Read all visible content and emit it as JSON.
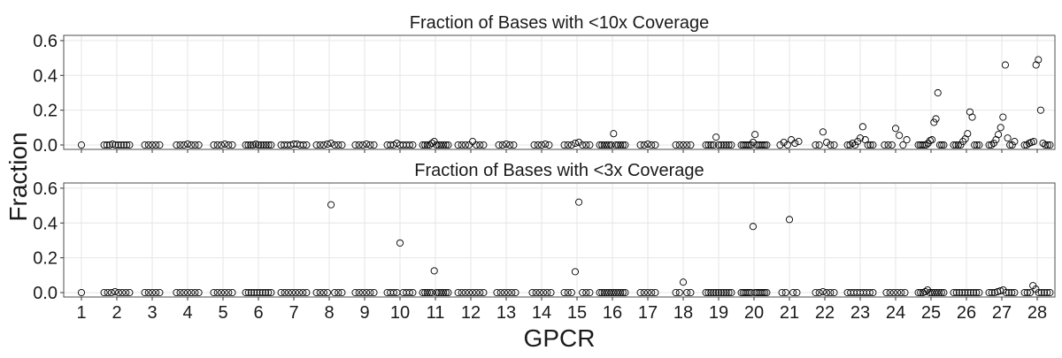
{
  "chart_data": {
    "type": "scatter",
    "shared_ylabel": "Fraction",
    "shared_xlabel": "GPCR",
    "categories": [
      "1",
      "2",
      "3",
      "4",
      "5",
      "6",
      "7",
      "8",
      "9",
      "10",
      "11",
      "12",
      "13",
      "14",
      "15",
      "16",
      "17",
      "18",
      "19",
      "20",
      "21",
      "22",
      "23",
      "24",
      "25",
      "26",
      "27",
      "28"
    ],
    "ylim": [
      0,
      0.62
    ],
    "yticks": [
      0.0,
      0.2,
      0.4,
      0.6
    ],
    "ytick_labels": [
      "0.0",
      "0.2",
      "0.4",
      "0.6"
    ],
    "grid": true,
    "panels": [
      {
        "title": "Fraction of Bases with <10x Coverage",
        "points_by_category": [
          [
            0.0
          ],
          [
            0.0,
            0.0,
            0.0,
            0.005,
            0.0,
            0.0,
            0.0,
            0.0,
            0.0,
            0.0
          ],
          [
            0.0,
            0.0,
            0.0,
            0.0,
            0.0
          ],
          [
            0.0,
            0.0,
            0.0,
            0.005,
            0.0,
            0.0,
            0.0
          ],
          [
            0.0,
            0.0,
            0.0,
            0.005,
            0.0,
            0.0
          ],
          [
            0.0,
            0.0,
            0.0,
            0.0,
            0.005,
            0.0,
            0.0,
            0.0,
            0.0,
            0.0,
            0.0
          ],
          [
            0.0,
            0.0,
            0.0,
            0.0,
            0.005,
            0.005,
            0.0,
            0.0,
            0.0
          ],
          [
            0.0,
            0.0,
            0.0,
            0.005,
            0.01,
            0.0,
            0.0,
            0.0
          ],
          [
            0.0,
            0.0,
            0.0,
            0.005,
            0.0,
            0.0
          ],
          [
            0.0,
            0.0,
            0.0,
            0.01,
            0.0,
            0.0,
            0.0,
            0.0,
            0.0
          ],
          [
            0.0,
            0.0,
            0.0,
            0.0,
            0.01,
            0.02,
            0.0,
            0.0,
            0.0,
            0.0,
            0.0,
            0.0
          ],
          [
            0.0,
            0.0,
            0.0,
            0.0,
            0.02,
            0.0,
            0.0,
            0.0
          ],
          [
            0.0,
            0.0,
            0.005,
            0.0,
            0.0
          ],
          [
            0.0,
            0.0,
            0.0,
            0.005,
            0.0
          ],
          [
            0.0,
            0.0,
            0.0,
            0.01,
            0.015,
            0.0,
            0.0,
            0.0
          ],
          [
            0.0,
            0.0,
            0.0,
            0.0,
            0.0,
            0.0,
            0.065,
            0.0,
            0.0,
            0.0,
            0.0,
            0.0
          ],
          [
            0.0,
            0.0,
            0.005,
            0.0,
            0.0
          ],
          [
            0.0,
            0.0,
            0.0,
            0.0,
            0.0
          ],
          [
            0.0,
            0.0,
            0.0,
            0.0,
            0.045,
            0.0,
            0.0,
            0.0,
            0.0,
            0.0,
            0.0
          ],
          [
            0.0,
            0.0,
            0.0,
            0.0,
            0.0,
            0.0,
            0.015,
            0.06,
            0.0,
            0.0,
            0.0,
            0.0,
            0.0,
            0.0
          ],
          [
            0.0,
            0.015,
            0.0,
            0.03,
            0.01,
            0.02
          ],
          [
            0.0,
            0.0,
            0.075,
            0.015,
            0.0,
            0.0
          ],
          [
            0.0,
            0.0,
            0.01,
            0.0,
            0.02,
            0.04,
            0.105,
            0.03,
            0.0,
            0.0,
            0.0
          ],
          [
            0.0,
            0.0,
            0.0,
            0.095,
            0.055,
            0.0,
            0.03
          ],
          [
            0.0,
            0.0,
            0.0,
            0.0,
            0.0,
            0.01,
            0.025,
            0.03,
            0.13,
            0.15,
            0.3,
            0.0,
            0.0,
            0.0
          ],
          [
            0.0,
            0.0,
            0.0,
            0.0,
            0.02,
            0.035,
            0.065,
            0.19,
            0.16,
            0.0,
            0.0,
            0.0
          ],
          [
            0.0,
            0.0,
            0.01,
            0.03,
            0.06,
            0.1,
            0.16,
            0.46,
            0.04,
            0.0,
            0.0,
            0.02
          ],
          [
            0.0,
            0.0,
            0.01,
            0.015,
            0.02,
            0.46,
            0.49,
            0.2,
            0.01,
            0.0,
            0.0,
            0.0
          ]
        ]
      },
      {
        "title": "Fraction of Bases with <3x Coverage",
        "points_by_category": [
          [
            0.0
          ],
          [
            0.0,
            0.0,
            0.0,
            0.005,
            0.0,
            0.0,
            0.0,
            0.0
          ],
          [
            0.0,
            0.0,
            0.0,
            0.0,
            0.0
          ],
          [
            0.0,
            0.0,
            0.0,
            0.0,
            0.0,
            0.0,
            0.0
          ],
          [
            0.0,
            0.0,
            0.0,
            0.0,
            0.0,
            0.0
          ],
          [
            0.0,
            0.0,
            0.0,
            0.0,
            0.0,
            0.0,
            0.0,
            0.0,
            0.0,
            0.0
          ],
          [
            0.0,
            0.0,
            0.0,
            0.0,
            0.0,
            0.0,
            0.0,
            0.0
          ],
          [
            0.0,
            0.0,
            0.0,
            0.0,
            0.505,
            0.0,
            0.0,
            0.0
          ],
          [
            0.0,
            0.0,
            0.0,
            0.0,
            0.0,
            0.0
          ],
          [
            0.0,
            0.0,
            0.0,
            0.0,
            0.285,
            0.0,
            0.0,
            0.0,
            0.0
          ],
          [
            0.0,
            0.0,
            0.0,
            0.0,
            0.0,
            0.125,
            0.0,
            0.0,
            0.0,
            0.0,
            0.0,
            0.0
          ],
          [
            0.0,
            0.0,
            0.0,
            0.0,
            0.0,
            0.0,
            0.0,
            0.0
          ],
          [
            0.0,
            0.0,
            0.0,
            0.0,
            0.0,
            0.0
          ],
          [
            0.0,
            0.0,
            0.0,
            0.0,
            0.0,
            0.0
          ],
          [
            0.0,
            0.0,
            0.0,
            0.12,
            0.52,
            0.0,
            0.0,
            0.0
          ],
          [
            0.0,
            0.0,
            0.0,
            0.0,
            0.0,
            0.0,
            0.0,
            0.0,
            0.0,
            0.0,
            0.0,
            0.0
          ],
          [
            0.0,
            0.0,
            0.0,
            0.0,
            0.0
          ],
          [
            0.0,
            0.0,
            0.06,
            0.0,
            0.0
          ],
          [
            0.0,
            0.0,
            0.0,
            0.0,
            0.0,
            0.0,
            0.0,
            0.0,
            0.0,
            0.0,
            0.0
          ],
          [
            0.0,
            0.0,
            0.0,
            0.0,
            0.0,
            0.0,
            0.38,
            0.0,
            0.0,
            0.0,
            0.0,
            0.0,
            0.0,
            0.0
          ],
          [
            0.0,
            0.0,
            0.42,
            0.0,
            0.0
          ],
          [
            0.0,
            0.0,
            0.005,
            0.0,
            0.0,
            0.0
          ],
          [
            0.0,
            0.0,
            0.0,
            0.0,
            0.0,
            0.0,
            0.0,
            0.0,
            0.0
          ],
          [
            0.0,
            0.0,
            0.0,
            0.0,
            0.0,
            0.0
          ],
          [
            0.0,
            0.0,
            0.0,
            0.005,
            0.015,
            0.0,
            0.0,
            0.0,
            0.0,
            0.0,
            0.0,
            0.0
          ],
          [
            0.0,
            0.0,
            0.0,
            0.0,
            0.0,
            0.0,
            0.0,
            0.0,
            0.0,
            0.0
          ],
          [
            0.0,
            0.0,
            0.0,
            0.005,
            0.01,
            0.015,
            0.0,
            0.0,
            0.0,
            0.0
          ],
          [
            0.0,
            0.0,
            0.0,
            0.04,
            0.02,
            0.0,
            0.0,
            0.0,
            0.0,
            0.0
          ]
        ]
      }
    ]
  }
}
